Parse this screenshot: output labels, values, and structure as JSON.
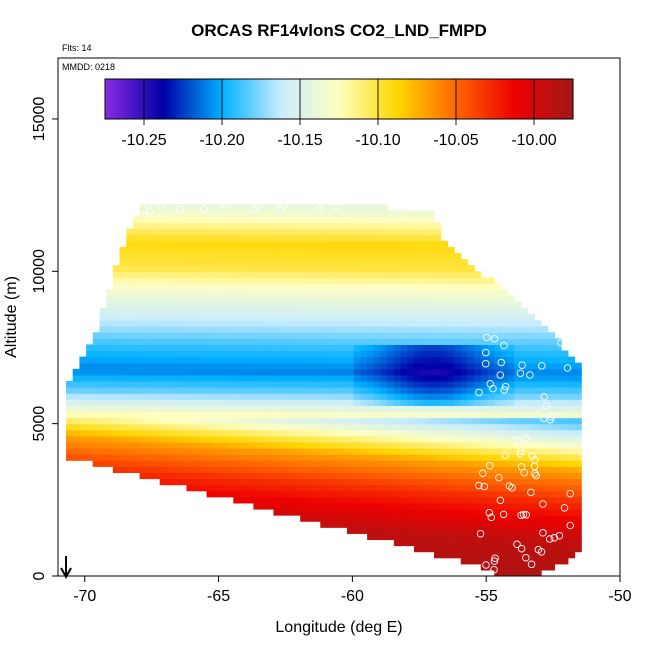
{
  "chart_data": {
    "type": "heatmap",
    "title": "ORCAS RF14vlonS CO2_LND_FMPD",
    "xlabel": "Longitude (deg E)",
    "ylabel": "Altitude (m)",
    "xlim": [
      -71,
      -50
    ],
    "ylim": [
      0,
      17000
    ],
    "xticks": [
      -70,
      -65,
      -60,
      -55,
      -50
    ],
    "yticks": [
      0,
      5000,
      10000,
      15000
    ],
    "annotations": [
      "Flts: 14",
      "MMDD: 0218"
    ],
    "colorbar": {
      "range": [
        -10.275,
        -9.975
      ],
      "ticks": [
        -10.25,
        -10.2,
        -10.15,
        -10.1,
        -10.05,
        -10.0
      ],
      "tick_labels": [
        "-10.25",
        "-10.20",
        "-10.15",
        "-10.10",
        "-10.05",
        "-10.00"
      ],
      "colors": [
        "#8a2be2",
        "#0000a8",
        "#00b0ff",
        "#c8ecff",
        "#ffffc0",
        "#ffd700",
        "#ff6600",
        "#ee0000",
        "#a01818"
      ]
    },
    "profile": [
      {
        "alt": 600,
        "value": -9.98
      },
      {
        "alt": 2200,
        "value": -9.99
      },
      {
        "alt": 3600,
        "value": -10.03
      },
      {
        "alt": 4600,
        "value": -10.07
      },
      {
        "alt": 5400,
        "value": -10.13
      },
      {
        "alt": 6100,
        "value": -10.18
      },
      {
        "alt": 6800,
        "value": -10.21
      },
      {
        "alt": 7600,
        "value": -10.19
      },
      {
        "alt": 8500,
        "value": -10.16
      },
      {
        "alt": 9500,
        "value": -10.13
      },
      {
        "alt": 10200,
        "value": -10.1
      },
      {
        "alt": 11000,
        "value": -10.09
      },
      {
        "alt": 12100,
        "value": -10.14
      }
    ],
    "top_boundary": [
      [
        -70.7,
        6100
      ],
      [
        -69.6,
        8000
      ],
      [
        -68.4,
        11300
      ],
      [
        -67.9,
        12100
      ],
      [
        -58.8,
        12100
      ],
      [
        -57.0,
        12000
      ],
      [
        -56.5,
        10900
      ],
      [
        -52.7,
        8200
      ],
      [
        -52.0,
        7300
      ],
      [
        -51.6,
        7000
      ]
    ],
    "bottom_boundary": [
      [
        -70.7,
        3900
      ],
      [
        -68.0,
        3300
      ],
      [
        -65.0,
        2600
      ],
      [
        -62.0,
        1900
      ],
      [
        -59.0,
        1200
      ],
      [
        -56.0,
        500
      ],
      [
        -54.6,
        100
      ],
      [
        -53.0,
        100
      ],
      [
        -52.0,
        400
      ],
      [
        -51.7,
        800
      ]
    ]
  },
  "arrow": {
    "x": -70.7
  }
}
